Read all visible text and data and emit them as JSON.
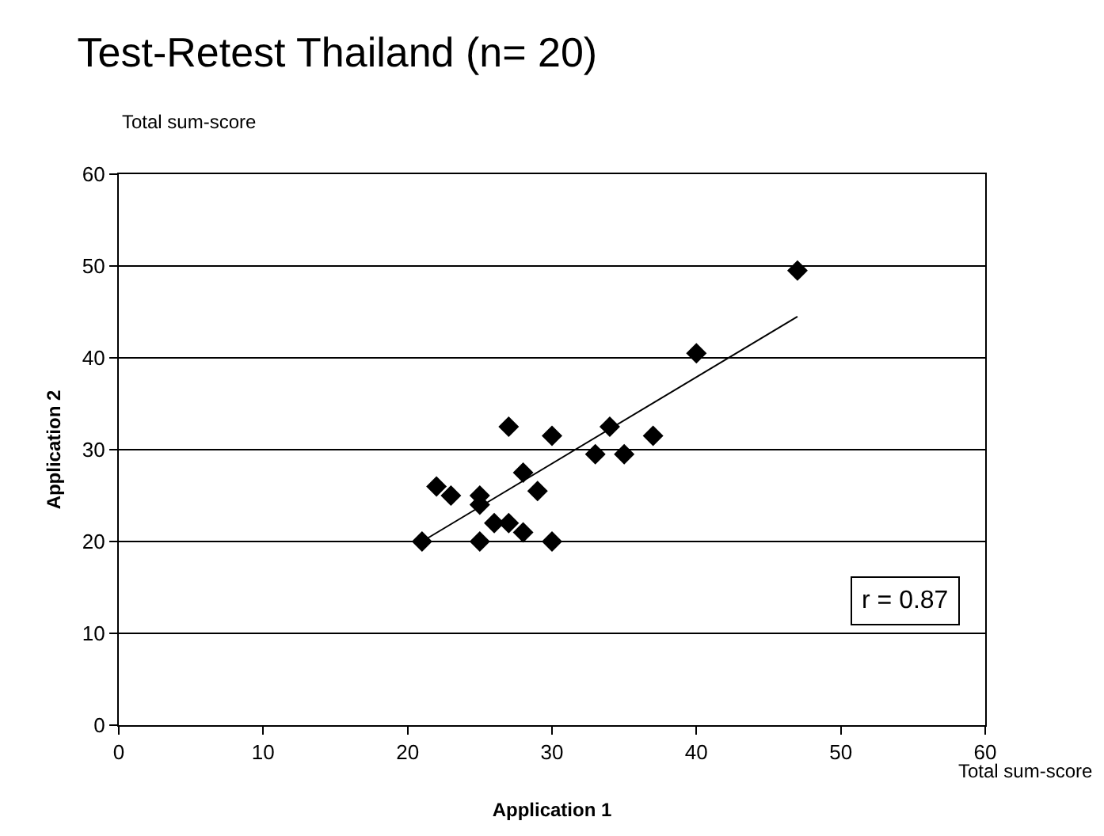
{
  "chart_data": {
    "type": "scatter",
    "title": "Test-Retest Thailand (n= 20)",
    "xlabel": "Application 1",
    "ylabel": "Application 2",
    "x": [
      21,
      22,
      23,
      25,
      25,
      25,
      26,
      27,
      27,
      28,
      28,
      29,
      30,
      30,
      33,
      34,
      35,
      37,
      40,
      47
    ],
    "series": [
      {
        "color": "#000000",
        "marker": "diamond",
        "values": [
          20,
          26,
          25,
          25,
          24,
          20,
          22,
          22,
          32.5,
          27.5,
          21,
          25.5,
          31.5,
          20,
          29.5,
          32.5,
          29.5,
          31.5,
          40.5,
          49.5
        ]
      },
      {
        "type": "line",
        "color": "#000000",
        "x": [
          21,
          47
        ],
        "values": [
          20,
          44.5
        ],
        "marker": "none",
        "line_style": "solid"
      }
    ],
    "xlim": [
      0,
      60
    ],
    "ylim": [
      0,
      60
    ],
    "xticks": [
      0,
      10,
      20,
      30,
      40,
      50,
      60
    ],
    "yticks": [
      0,
      10,
      20,
      30,
      40,
      50,
      60
    ],
    "grid": "y",
    "annotations": [
      "Total sum-score",
      "Total sum-score",
      "r = 0.87"
    ]
  }
}
